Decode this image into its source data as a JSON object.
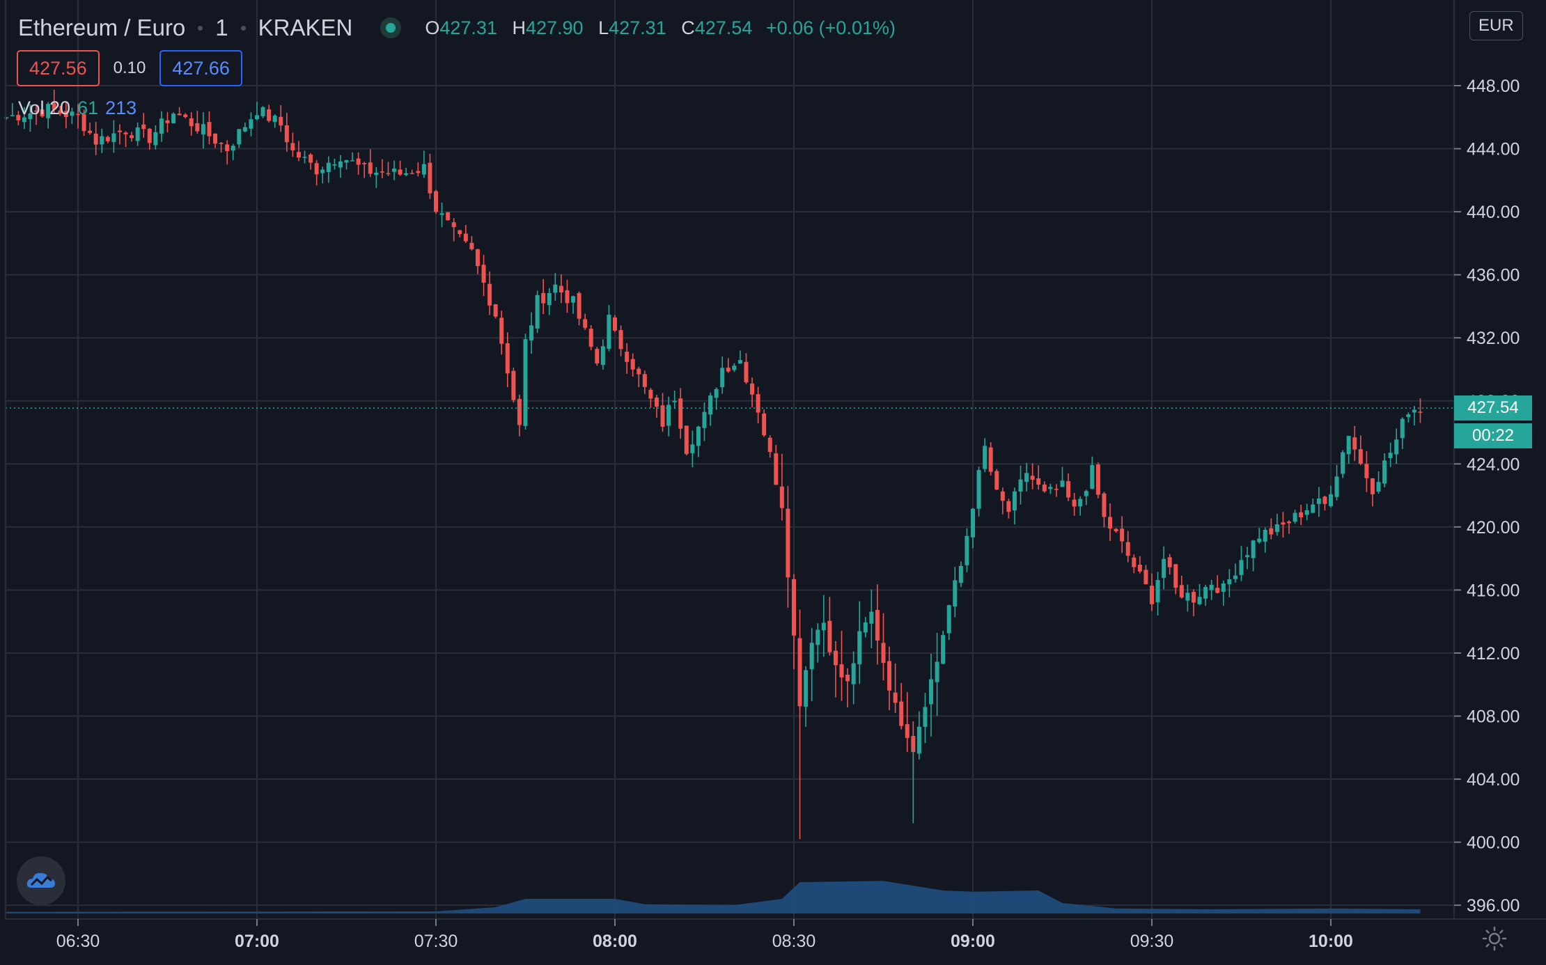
{
  "header": {
    "symbol_title": "Ethereum / Euro",
    "interval": "1",
    "exchange": "KRAKEN",
    "open_label": "O",
    "open_value": "427.31",
    "high_label": "H",
    "high_value": "427.90",
    "low_label": "L",
    "low_value": "427.31",
    "close_label": "C",
    "close_value": "427.54",
    "change": "+0.06 (+0.01%)"
  },
  "trading": {
    "sell_price": "427.56",
    "spread": "0.10",
    "buy_price": "427.66"
  },
  "volume_legend": {
    "label": "Vol 20",
    "value_a": "61",
    "value_b": "213"
  },
  "price_scale": {
    "currency": "EUR",
    "ticks": [
      "448.00",
      "444.00",
      "440.00",
      "436.00",
      "432.00",
      "428.00",
      "424.00",
      "420.00",
      "416.00",
      "412.00",
      "408.00",
      "404.00",
      "400.00",
      "396.00"
    ],
    "current_price": "427.54",
    "countdown": "00:22"
  },
  "time_axis": {
    "ticks": [
      "06:30",
      "07:00",
      "07:30",
      "08:00",
      "08:30",
      "09:00",
      "09:30",
      "10:00"
    ]
  },
  "colors": {
    "background": "#131722",
    "up": "#26a69a",
    "down": "#ef5350",
    "grid": "#2a2e39",
    "volume_area": "#1f4b7a"
  },
  "icons": {
    "live_status": "green-dot-icon",
    "logo": "tradingview-cloud-icon",
    "settings": "sun-gear-icon"
  },
  "chart_data": {
    "type": "candlestick",
    "symbol": "Ethereum / Euro",
    "interval_minutes": 1,
    "exchange": "KRAKEN",
    "time_range": [
      "06:18",
      "10:15"
    ],
    "ylim": [
      395,
      451
    ],
    "y_ticks": [
      396,
      400,
      404,
      408,
      412,
      416,
      420,
      424,
      428,
      432,
      436,
      440,
      444,
      448
    ],
    "x_ticks": [
      "06:30",
      "07:00",
      "07:30",
      "08:00",
      "08:30",
      "09:00",
      "09:30",
      "10:00"
    ],
    "grid": true,
    "close_path": [
      [
        "06:18",
        446.0
      ],
      [
        "06:25",
        446.5
      ],
      [
        "06:30",
        446.0
      ],
      [
        "06:33",
        444.5
      ],
      [
        "06:38",
        445.2
      ],
      [
        "06:42",
        444.7
      ],
      [
        "06:46",
        446.3
      ],
      [
        "06:50",
        445.4
      ],
      [
        "06:55",
        444.0
      ],
      [
        "07:00",
        446.5
      ],
      [
        "07:04",
        445.5
      ],
      [
        "07:06",
        443.8
      ],
      [
        "07:10",
        442.7
      ],
      [
        "07:14",
        443.6
      ],
      [
        "07:18",
        442.6
      ],
      [
        "07:24",
        442.4
      ],
      [
        "07:28",
        442.8
      ],
      [
        "07:30",
        440.2
      ],
      [
        "07:33",
        438.6
      ],
      [
        "07:36",
        437.4
      ],
      [
        "07:40",
        433.5
      ],
      [
        "07:42",
        430.0
      ],
      [
        "07:44",
        426.3
      ],
      [
        "07:45",
        431.7
      ],
      [
        "07:47",
        434.3
      ],
      [
        "07:50",
        435.3
      ],
      [
        "07:53",
        434.2
      ],
      [
        "07:57",
        430.4
      ],
      [
        "07:59",
        433.2
      ],
      [
        "08:00",
        432.1
      ],
      [
        "08:03",
        430.3
      ],
      [
        "08:05",
        428.7
      ],
      [
        "08:08",
        426.6
      ],
      [
        "08:10",
        428.3
      ],
      [
        "08:12",
        425.0
      ],
      [
        "08:15",
        427.0
      ],
      [
        "08:18",
        430.1
      ],
      [
        "08:21",
        430.6
      ],
      [
        "08:24",
        427.5
      ],
      [
        "08:26",
        424.5
      ],
      [
        "08:28",
        421.5
      ],
      [
        "08:30",
        413.0
      ],
      [
        "08:31",
        409.0
      ],
      [
        "08:33",
        413.0
      ],
      [
        "08:35",
        414.0
      ],
      [
        "08:37",
        411.0
      ],
      [
        "08:39",
        410.0
      ],
      [
        "08:41",
        413.0
      ],
      [
        "08:43",
        414.5
      ],
      [
        "08:45",
        411.5
      ],
      [
        "08:47",
        408.5
      ],
      [
        "08:49",
        407.0
      ],
      [
        "08:50",
        406.0
      ],
      [
        "08:52",
        409.0
      ],
      [
        "08:54",
        411.5
      ],
      [
        "08:56",
        415.0
      ],
      [
        "08:58",
        417.5
      ],
      [
        "09:00",
        421.5
      ],
      [
        "09:02",
        425.0
      ],
      [
        "09:04",
        422.0
      ],
      [
        "09:06",
        421.0
      ],
      [
        "09:09",
        423.5
      ],
      [
        "09:12",
        422.0
      ],
      [
        "09:15",
        422.5
      ],
      [
        "09:17",
        421.0
      ],
      [
        "09:20",
        423.5
      ],
      [
        "09:22",
        420.5
      ],
      [
        "09:24",
        419.5
      ],
      [
        "09:27",
        417.5
      ],
      [
        "09:30",
        415.5
      ],
      [
        "09:32",
        418.0
      ],
      [
        "09:34",
        416.0
      ],
      [
        "09:37",
        415.5
      ],
      [
        "09:40",
        416.5
      ],
      [
        "09:42",
        416.0
      ],
      [
        "09:45",
        418.0
      ],
      [
        "09:48",
        419.5
      ],
      [
        "09:51",
        419.8
      ],
      [
        "09:54",
        420.6
      ],
      [
        "09:57",
        421.5
      ],
      [
        "09:59",
        421.4
      ],
      [
        "10:01",
        423.5
      ],
      [
        "10:03",
        426.0
      ],
      [
        "10:05",
        424.0
      ],
      [
        "10:07",
        422.5
      ],
      [
        "10:09",
        424.0
      ],
      [
        "10:11",
        425.5
      ],
      [
        "10:13",
        427.5
      ],
      [
        "10:15",
        427.54
      ]
    ],
    "volume_envelope": [
      [
        "06:18",
        0.04
      ],
      [
        "07:30",
        0.05
      ],
      [
        "07:40",
        0.15
      ],
      [
        "07:45",
        0.35
      ],
      [
        "08:00",
        0.35
      ],
      [
        "08:05",
        0.22
      ],
      [
        "08:20",
        0.2
      ],
      [
        "08:28",
        0.35
      ],
      [
        "08:31",
        0.75
      ],
      [
        "08:45",
        0.78
      ],
      [
        "08:55",
        0.55
      ],
      [
        "09:00",
        0.52
      ],
      [
        "09:11",
        0.55
      ],
      [
        "09:15",
        0.25
      ],
      [
        "09:24",
        0.12
      ],
      [
        "09:40",
        0.1
      ],
      [
        "10:00",
        0.12
      ],
      [
        "10:15",
        0.1
      ]
    ]
  }
}
